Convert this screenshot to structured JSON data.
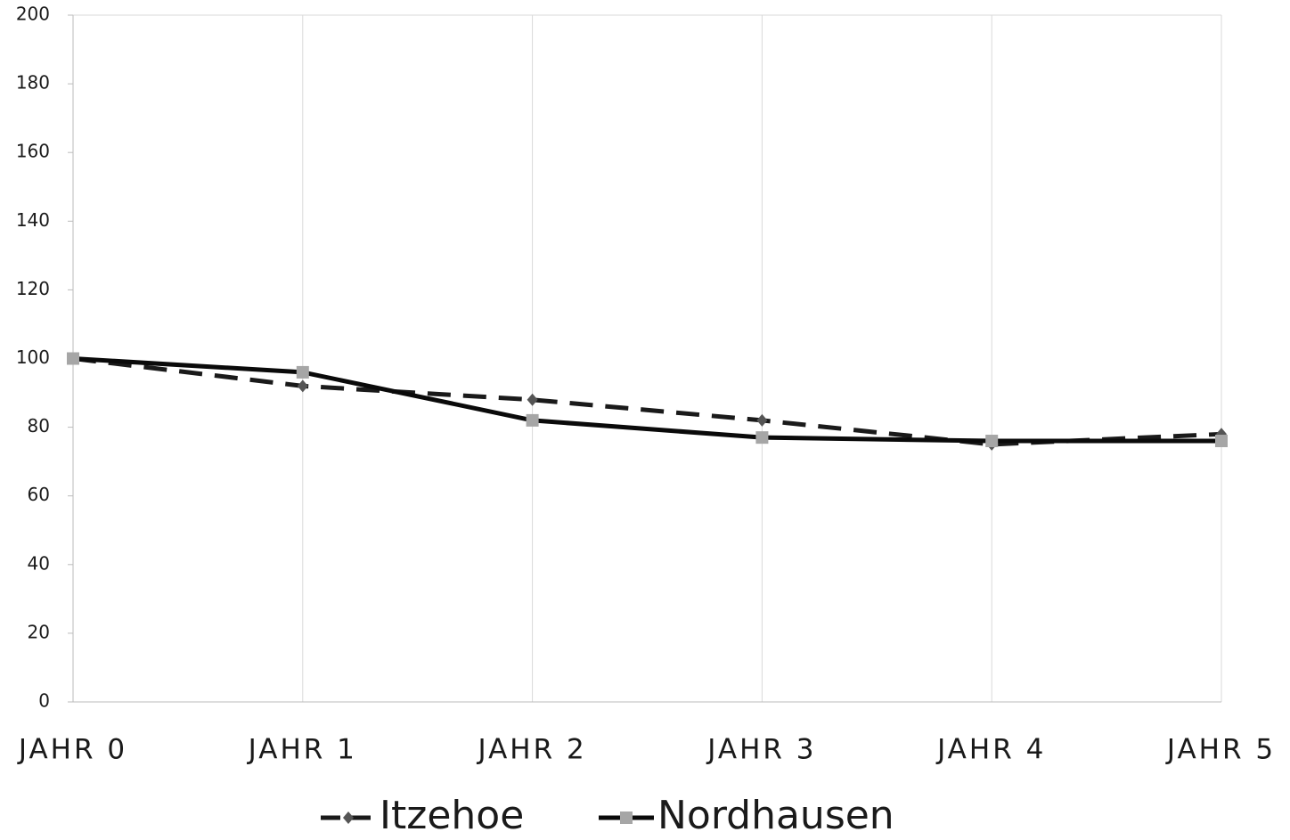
{
  "chart_data": {
    "type": "line",
    "categories": [
      "JAHR 0",
      "JAHR 1",
      "JAHR 2",
      "JAHR 3",
      "JAHR 4",
      "JAHR 5"
    ],
    "series": [
      {
        "name": "Itzehoe",
        "color": "#1a1a1a",
        "marker_color": "#555555",
        "dash": true,
        "marker": "diamond",
        "values": [
          100,
          92,
          88,
          82,
          75,
          78
        ]
      },
      {
        "name": "Nordhausen",
        "color": "#0a0a0a",
        "marker_color": "#a6a6a6",
        "dash": false,
        "marker": "square",
        "values": [
          100,
          96,
          82,
          77,
          76,
          76
        ]
      }
    ],
    "ylim": [
      0,
      200
    ],
    "yticks": [
      0,
      20,
      40,
      60,
      80,
      100,
      120,
      140,
      160,
      180,
      200
    ],
    "grid": true,
    "legend": "bottom"
  }
}
